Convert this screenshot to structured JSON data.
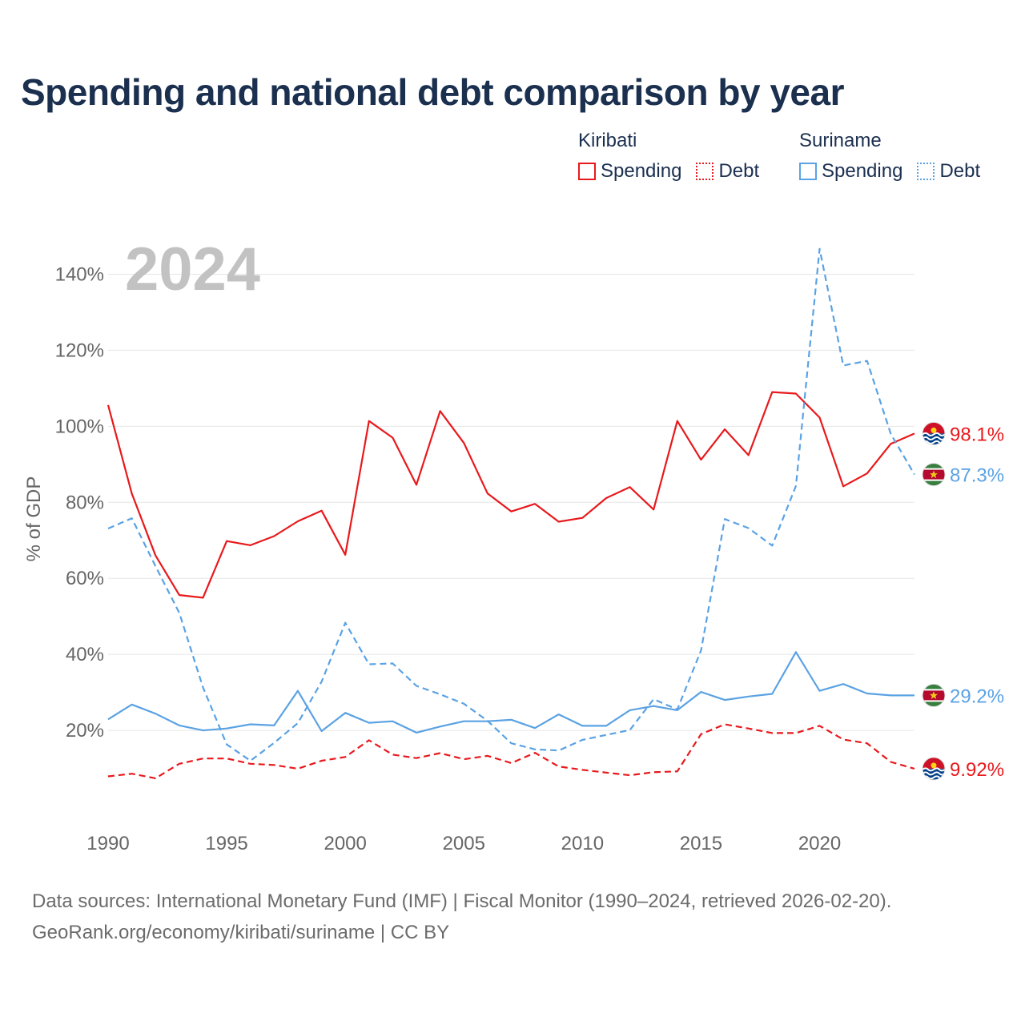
{
  "title": "Spending and national debt comparison by year",
  "legend": {
    "kiribati": {
      "country": "Kiribati",
      "spending": "Spending",
      "debt": "Debt"
    },
    "suriname": {
      "country": "Suriname",
      "spending": "Spending",
      "debt": "Debt"
    }
  },
  "colors": {
    "kiribati": "#e8191c",
    "suriname": "#5aa2e4"
  },
  "source": {
    "line1": "Data sources: International Monetary Fund (IMF) | Fiscal Monitor (1990–2024, retrieved 2026-02-20).",
    "line2": "GeoRank.org/economy/kiribati/suriname | CC BY"
  },
  "chart_data": {
    "type": "line",
    "year_label": "2024",
    "ylabel": "% of GDP",
    "xlim": [
      1990,
      2024
    ],
    "ylim": [
      0,
      150
    ],
    "x_ticks": [
      1990,
      1995,
      2000,
      2005,
      2010,
      2015,
      2020
    ],
    "y_ticks": [
      20,
      40,
      60,
      80,
      100,
      120,
      140
    ],
    "y_tick_labels": [
      "20%",
      "40%",
      "60%",
      "80%",
      "100%",
      "120%",
      "140%"
    ],
    "x": [
      1990,
      1991,
      1992,
      1993,
      1994,
      1995,
      1996,
      1997,
      1998,
      1999,
      2000,
      2001,
      2002,
      2003,
      2004,
      2005,
      2006,
      2007,
      2008,
      2009,
      2010,
      2011,
      2012,
      2013,
      2014,
      2015,
      2016,
      2017,
      2018,
      2019,
      2020,
      2021,
      2022,
      2023,
      2024
    ],
    "series": [
      {
        "name": "Kiribati Spending",
        "country": "kiribati",
        "style": "solid",
        "values": [
          105.6,
          82.3,
          66.0,
          55.6,
          54.9,
          69.8,
          68.7,
          71.1,
          75.0,
          77.8,
          66.2,
          101.4,
          97.0,
          84.6,
          104.0,
          95.6,
          82.3,
          77.6,
          79.6,
          74.9,
          75.9,
          81.1,
          84.0,
          78.1,
          101.4,
          91.2,
          99.2,
          92.4,
          109.0,
          108.6,
          102.3,
          84.2,
          87.6,
          95.4,
          98.1
        ],
        "end_label": "98.1%"
      },
      {
        "name": "Kiribati Debt",
        "country": "kiribati",
        "style": "dashed",
        "values": [
          7.9,
          8.6,
          7.4,
          11.2,
          12.6,
          12.6,
          11.2,
          10.9,
          9.9,
          12.0,
          13.0,
          17.4,
          13.6,
          12.7,
          14.0,
          12.4,
          13.3,
          11.4,
          14.1,
          10.5,
          9.6,
          8.9,
          8.2,
          9.0,
          9.2,
          19.0,
          21.6,
          20.5,
          19.3,
          19.3,
          21.2,
          17.6,
          16.6,
          11.7,
          9.92
        ],
        "end_label": "9.92%"
      },
      {
        "name": "Suriname Spending",
        "country": "suriname",
        "style": "solid",
        "values": [
          22.9,
          26.8,
          24.4,
          21.3,
          20.0,
          20.5,
          21.6,
          21.3,
          30.4,
          19.8,
          24.6,
          22.0,
          22.4,
          19.4,
          21.0,
          22.4,
          22.4,
          22.8,
          20.6,
          24.2,
          21.2,
          21.2,
          25.3,
          26.4,
          25.3,
          30.1,
          28.0,
          28.9,
          29.6,
          40.6,
          30.4,
          32.2,
          29.7,
          29.2,
          29.2
        ],
        "end_label": "29.2%"
      },
      {
        "name": "Suriname Debt",
        "country": "suriname",
        "style": "dashed",
        "values": [
          73.1,
          75.8,
          63.2,
          50.9,
          31.3,
          16.3,
          12.0,
          16.7,
          21.9,
          32.8,
          48.3,
          37.4,
          37.6,
          31.7,
          29.5,
          27.0,
          22.5,
          16.6,
          15.0,
          14.7,
          17.5,
          18.8,
          20.1,
          28.2,
          25.5,
          41.0,
          75.6,
          73.2,
          68.6,
          84.3,
          146.7,
          116.0,
          117.2,
          98.0,
          87.3
        ],
        "end_label": "87.3%"
      }
    ]
  }
}
